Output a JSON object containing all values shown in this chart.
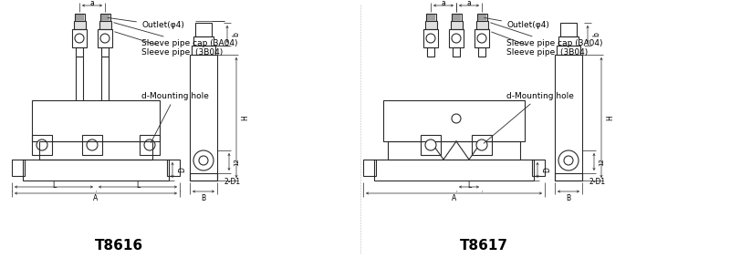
{
  "bg_color": "#ffffff",
  "line_color": "#2a2a2a",
  "text_color": "#000000",
  "fig_width": 8.0,
  "fig_height": 2.83,
  "dpi": 100,
  "title_left": "T8616",
  "title_right": "T8617",
  "outlet_label": "Outlet(φ4)",
  "sleeve_cap_label": "Sleeve pipe cap (3A04)",
  "sleeve_pipe_label": "Sleeve pipe  (3B04)",
  "mounting_label": "d-Mounting hole",
  "dim_2d1": "2-D1",
  "dim_12": "12",
  "dim_b_label": "B",
  "dim_b2_label": "b",
  "dim_a_label": "A",
  "dim_a_small": "a",
  "dim_l_label": "L",
  "dim_d_label": "D",
  "dim_h_label": "H"
}
